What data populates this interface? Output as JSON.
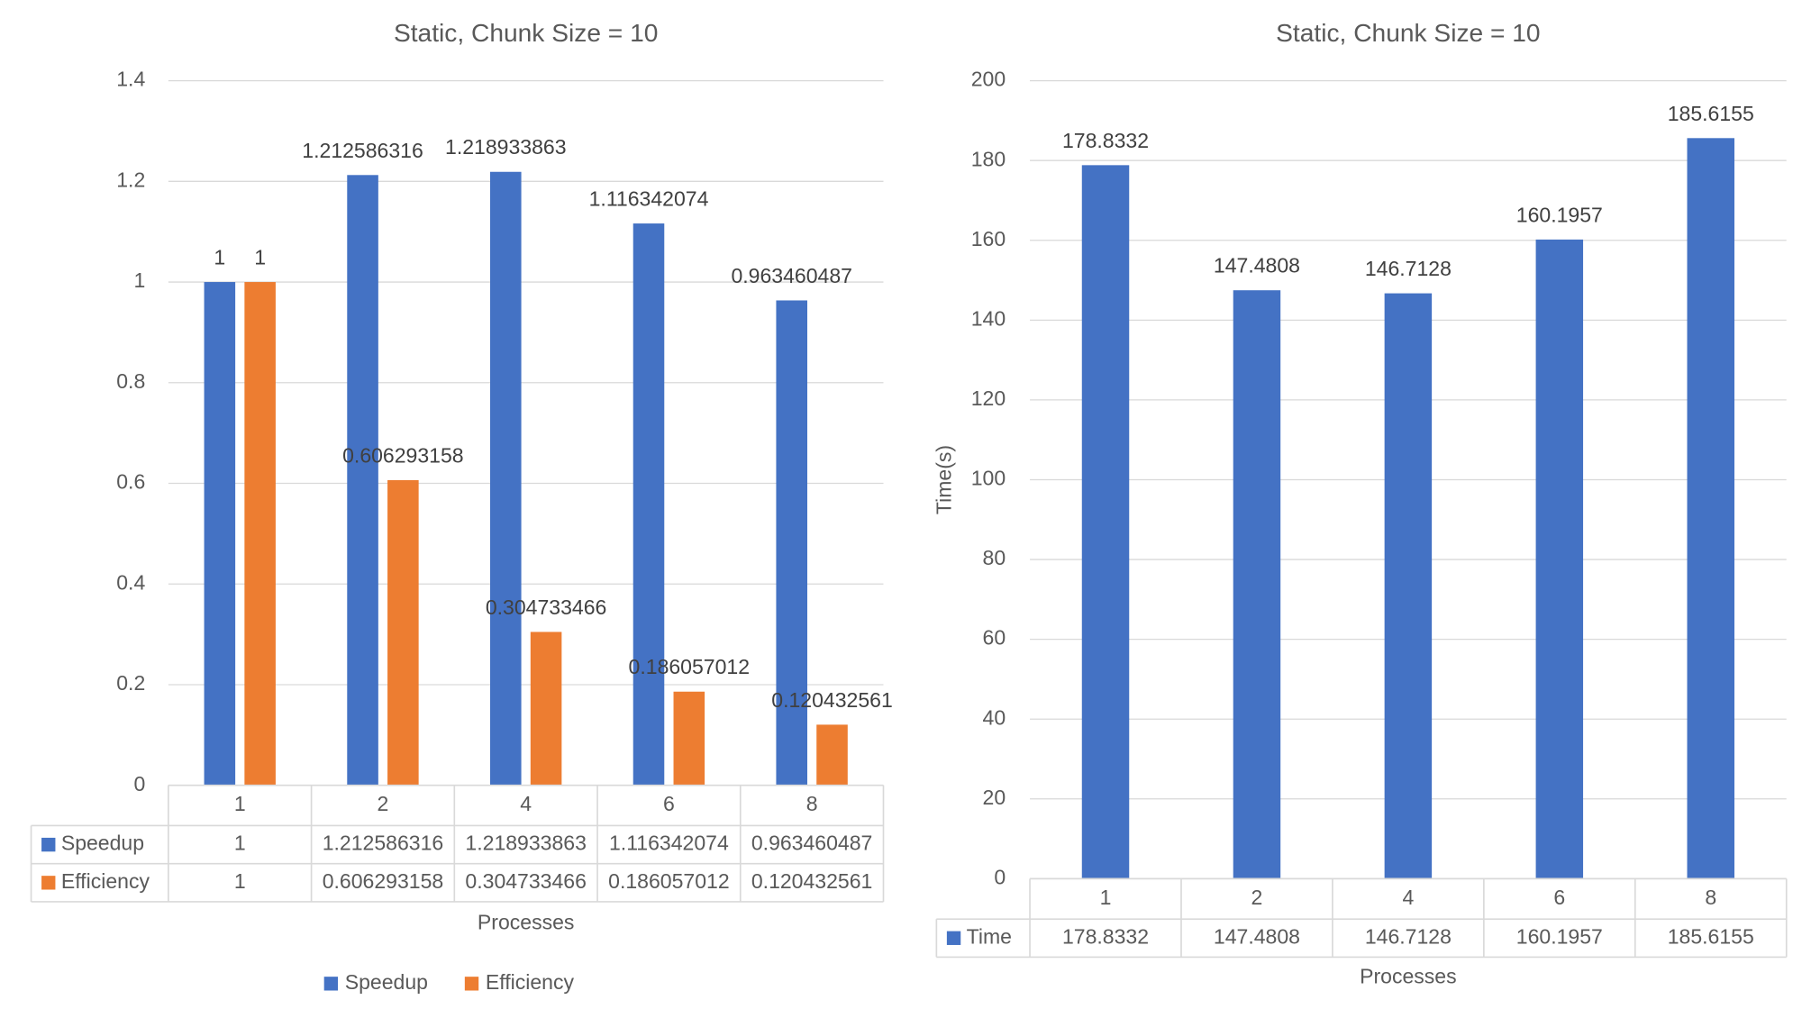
{
  "charts": [
    {
      "title": "Static, Chunk Size = 10",
      "xlabel": "Processes",
      "ylabel": "",
      "ytick_labels": [
        "0",
        "0.2",
        "0.4",
        "0.6",
        "0.8",
        "1",
        "1.2",
        "1.4"
      ],
      "legend_labels": [
        "Speedup",
        "Efficiency"
      ],
      "table_categories": [
        "1",
        "2",
        "4",
        "6",
        "8"
      ],
      "table_rows": [
        {
          "name": "Speedup",
          "cells": [
            "1",
            "1.212586316",
            "1.218933863",
            "1.116342074",
            "0.963460487"
          ]
        },
        {
          "name": "Efficiency",
          "cells": [
            "1",
            "0.606293158",
            "0.304733466",
            "0.186057012",
            "0.120432561"
          ]
        }
      ]
    },
    {
      "title": "Static, Chunk Size = 10",
      "xlabel": "Processes",
      "ylabel": "Time(s)",
      "ytick_labels": [
        "0",
        "20",
        "40",
        "60",
        "80",
        "100",
        "120",
        "140",
        "160",
        "180",
        "200"
      ],
      "legend_labels": [],
      "table_categories": [
        "1",
        "2",
        "4",
        "6",
        "8"
      ],
      "table_rows": [
        {
          "name": "Time",
          "cells": [
            "178.8332",
            "147.4808",
            "146.7128",
            "160.1957",
            "185.6155"
          ]
        }
      ]
    }
  ],
  "chart_data": [
    {
      "type": "bar",
      "title": "Static, Chunk Size = 10",
      "xlabel": "Processes",
      "ylabel": "",
      "categories": [
        "1",
        "2",
        "4",
        "6",
        "8"
      ],
      "series": [
        {
          "name": "Speedup",
          "color": "#4472c4",
          "values": [
            1,
            1.212586316,
            1.218933863,
            1.116342074,
            0.963460487
          ],
          "labels": [
            "1",
            "1.212586316",
            "1.218933863",
            "1.116342074",
            "0.963460487"
          ]
        },
        {
          "name": "Efficiency",
          "color": "#ed7d31",
          "values": [
            1,
            0.606293158,
            0.304733466,
            0.186057012,
            0.120432561
          ],
          "labels": [
            "1",
            "0.606293158",
            "0.304733466",
            "0.186057012",
            "0.120432561"
          ]
        }
      ],
      "ylim": [
        0,
        1.4
      ],
      "ytick_step": 0.2,
      "grid": true,
      "data_table": true,
      "legend": "bottom"
    },
    {
      "type": "bar",
      "title": "Static, Chunk Size = 10",
      "xlabel": "Processes",
      "ylabel": "Time(s)",
      "categories": [
        "1",
        "2",
        "4",
        "6",
        "8"
      ],
      "series": [
        {
          "name": "Time",
          "color": "#4472c4",
          "values": [
            178.8332,
            147.4808,
            146.7128,
            160.1957,
            185.6155
          ],
          "labels": [
            "178.8332",
            "147.4808",
            "146.7128",
            "160.1957",
            "185.6155"
          ]
        }
      ],
      "ylim": [
        0,
        200
      ],
      "ytick_step": 20,
      "grid": true,
      "data_table": true,
      "legend": "none"
    }
  ]
}
